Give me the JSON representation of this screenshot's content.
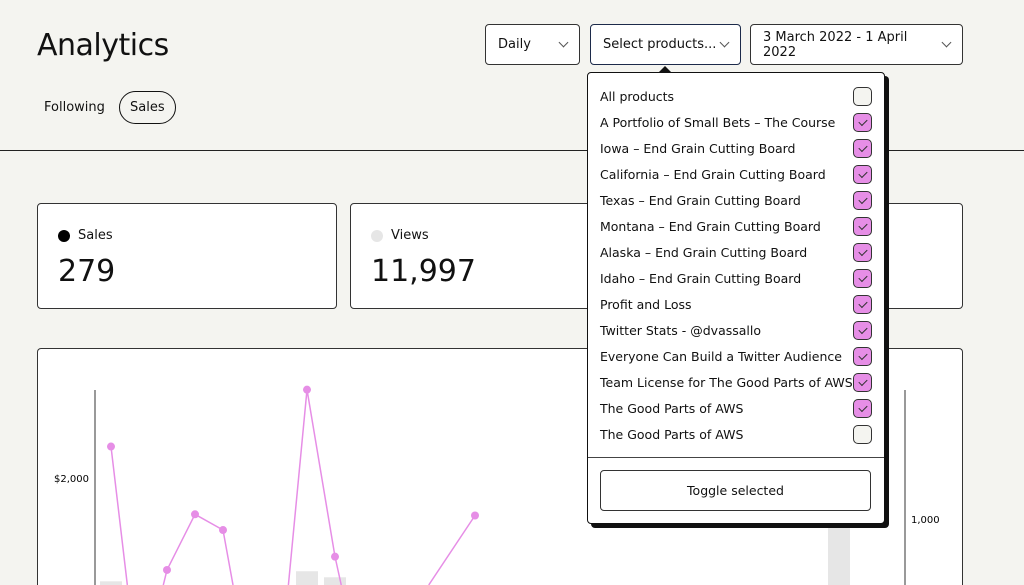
{
  "header": {
    "title": "Analytics",
    "tabs": [
      {
        "label": "Following",
        "active": false
      },
      {
        "label": "Sales",
        "active": true
      }
    ]
  },
  "controls": {
    "interval": "Daily",
    "products_placeholder": "Select products...",
    "date_range": "3 March 2022 - 1 April 2022"
  },
  "stats": [
    {
      "label": "Sales",
      "value": "279",
      "dot_color": "#000000"
    },
    {
      "label": "Views",
      "value": "11,997",
      "dot_color": "#e6e6e6"
    }
  ],
  "dropdown": {
    "items": [
      {
        "label": "All products",
        "checked": false
      },
      {
        "label": "A Portfolio of Small Bets – The Course",
        "checked": true
      },
      {
        "label": "Iowa – End Grain Cutting Board",
        "checked": true
      },
      {
        "label": "California – End Grain Cutting Board",
        "checked": true
      },
      {
        "label": "Texas – End Grain Cutting Board",
        "checked": true
      },
      {
        "label": "Montana – End Grain Cutting Board",
        "checked": true
      },
      {
        "label": "Alaska – End Grain Cutting Board",
        "checked": true
      },
      {
        "label": "Idaho – End Grain Cutting Board",
        "checked": true
      },
      {
        "label": "Profit and Loss",
        "checked": true
      },
      {
        "label": "Twitter Stats - @dvassallo",
        "checked": true
      },
      {
        "label": "Everyone Can Build a Twitter Audience",
        "checked": true
      },
      {
        "label": "Team License for The Good Parts of AWS",
        "checked": true
      },
      {
        "label": "The Good Parts of AWS",
        "checked": true
      },
      {
        "label": "The Good Parts of AWS",
        "checked": false
      }
    ],
    "toggle_label": "Toggle selected"
  },
  "colors": {
    "accent": "#e68ee6",
    "bar": "#e6e6e6",
    "background": "#f4f4f0"
  },
  "chart_data": {
    "type": "line",
    "left_axis_ticks": [
      "$2,000"
    ],
    "right_axis_ticks": [
      "1,000"
    ],
    "series": [
      {
        "kind": "line",
        "axis": "left",
        "x": [
          0,
          1,
          2,
          3,
          4,
          5,
          6,
          7,
          8,
          9,
          13
        ],
        "values": [
          2260,
          300,
          1240,
          1700,
          1570,
          300,
          300,
          2730,
          1350,
          300,
          1690
        ]
      },
      {
        "kind": "bar",
        "axis": "right",
        "x": [
          0,
          7,
          8,
          26
        ],
        "values": [
          690,
          740,
          710,
          970
        ]
      }
    ]
  }
}
